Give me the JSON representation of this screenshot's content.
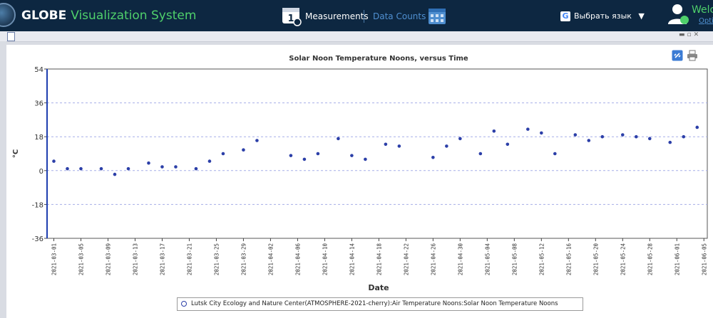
{
  "header": {
    "brand_globe": "GLOBE",
    "brand_system": "Visualization System",
    "nav_measurements": "Measurements",
    "nav_data_counts": "Data Counts",
    "translate_label": "Выбрать язык",
    "translate_arrow": "▼",
    "welcome": "Welc",
    "options": "Optio"
  },
  "colors": {
    "header_bg": "#0d2741",
    "brand_green": "#4fd06b",
    "link_blue": "#4f8fd0",
    "series_color": "#2c3fa8"
  },
  "icons": [
    "globe-logo-icon",
    "measurements-icon",
    "calendar-icon",
    "google-icon",
    "user-icon",
    "document-icon",
    "link-icon",
    "print-icon"
  ],
  "chart_data": {
    "type": "scatter",
    "title": "Solar Noon Temperature Noons, versus Time",
    "xlabel": "Date",
    "ylabel": "°C",
    "ylim": [
      -36,
      54
    ],
    "yticks": [
      "54",
      "36",
      "18",
      "0",
      "-18",
      "-36"
    ],
    "xlim": [
      "2021-03-01",
      "2021-06-05"
    ],
    "xticks": [
      "2021-03-01",
      "2021-03-05",
      "2021-03-09",
      "2021-03-13",
      "2021-03-17",
      "2021-03-21",
      "2021-03-25",
      "2021-03-29",
      "2021-04-02",
      "2021-04-06",
      "2021-04-10",
      "2021-04-14",
      "2021-04-18",
      "2021-04-22",
      "2021-04-26",
      "2021-04-30",
      "2021-05-04",
      "2021-05-08",
      "2021-05-12",
      "2021-05-16",
      "2021-05-20",
      "2021-05-24",
      "2021-05-28",
      "2021-06-01",
      "2021-06-05"
    ],
    "grid": true,
    "legend_position": "bottom",
    "series": [
      {
        "name": "Lutsk City Ecology and Nature Center(ATMOSPHERE-2021-cherry):Air Temperature Noons:Solar Noon Temperature Noons",
        "points": [
          {
            "x": "2021-03-01",
            "y": 5
          },
          {
            "x": "2021-03-03",
            "y": 1
          },
          {
            "x": "2021-03-05",
            "y": 1
          },
          {
            "x": "2021-03-08",
            "y": 1
          },
          {
            "x": "2021-03-10",
            "y": -2
          },
          {
            "x": "2021-03-12",
            "y": 1
          },
          {
            "x": "2021-03-15",
            "y": 4
          },
          {
            "x": "2021-03-17",
            "y": 2
          },
          {
            "x": "2021-03-19",
            "y": 2
          },
          {
            "x": "2021-03-22",
            "y": 1
          },
          {
            "x": "2021-03-24",
            "y": 5
          },
          {
            "x": "2021-03-26",
            "y": 9
          },
          {
            "x": "2021-03-29",
            "y": 11
          },
          {
            "x": "2021-03-31",
            "y": 16
          },
          {
            "x": "2021-04-05",
            "y": 8
          },
          {
            "x": "2021-04-07",
            "y": 6
          },
          {
            "x": "2021-04-09",
            "y": 9
          },
          {
            "x": "2021-04-12",
            "y": 17
          },
          {
            "x": "2021-04-14",
            "y": 8
          },
          {
            "x": "2021-04-16",
            "y": 6
          },
          {
            "x": "2021-04-19",
            "y": 14
          },
          {
            "x": "2021-04-21",
            "y": 13
          },
          {
            "x": "2021-04-26",
            "y": 7
          },
          {
            "x": "2021-04-28",
            "y": 13
          },
          {
            "x": "2021-04-30",
            "y": 17
          },
          {
            "x": "2021-05-03",
            "y": 9
          },
          {
            "x": "2021-05-05",
            "y": 21
          },
          {
            "x": "2021-05-07",
            "y": 14
          },
          {
            "x": "2021-05-10",
            "y": 22
          },
          {
            "x": "2021-05-12",
            "y": 20
          },
          {
            "x": "2021-05-14",
            "y": 9
          },
          {
            "x": "2021-05-17",
            "y": 19
          },
          {
            "x": "2021-05-19",
            "y": 16
          },
          {
            "x": "2021-05-21",
            "y": 18
          },
          {
            "x": "2021-05-24",
            "y": 19
          },
          {
            "x": "2021-05-26",
            "y": 18
          },
          {
            "x": "2021-05-28",
            "y": 17
          },
          {
            "x": "2021-05-31",
            "y": 15
          },
          {
            "x": "2021-06-02",
            "y": 18
          },
          {
            "x": "2021-06-04",
            "y": 23
          }
        ]
      }
    ]
  }
}
